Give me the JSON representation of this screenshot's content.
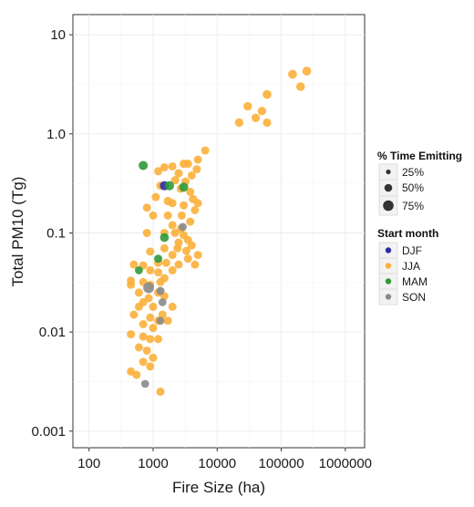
{
  "chart_data": {
    "type": "scatter",
    "xlabel": "Fire Size (ha)",
    "ylabel": "Total PM10 (Tg)",
    "x_scale": "log",
    "y_scale": "log",
    "xlim": [
      56,
      2000000
    ],
    "ylim": [
      0.00068,
      16
    ],
    "x_ticks": [
      {
        "value": 100,
        "label": "100"
      },
      {
        "value": 1000,
        "label": "1000"
      },
      {
        "value": 10000,
        "label": "10000"
      },
      {
        "value": 100000,
        "label": "100000"
      },
      {
        "value": 1000000,
        "label": "1000000"
      }
    ],
    "y_ticks": [
      {
        "value": 0.001,
        "label": "0.001"
      },
      {
        "value": 0.01,
        "label": "0.01"
      },
      {
        "value": 0.1,
        "label": "0.1"
      },
      {
        "value": 1,
        "label": "1.0"
      },
      {
        "value": 10,
        "label": "10"
      }
    ],
    "grid": true,
    "legend_position": "right",
    "size_legend": {
      "title": "% Time Emitting",
      "items": [
        {
          "label": "25%",
          "value": 25
        },
        {
          "label": "50%",
          "value": 50
        },
        {
          "label": "75%",
          "value": 75
        }
      ]
    },
    "color_legend": {
      "title": "Start month",
      "items": [
        {
          "label": "DJF",
          "color": "#2b2fa3"
        },
        {
          "label": "JJA",
          "color": "#fbb03b"
        },
        {
          "label": "MAM",
          "color": "#2f9a3a"
        },
        {
          "label": "SON",
          "color": "#8a8a8a"
        }
      ]
    },
    "series": [
      {
        "name": "JJA",
        "color": "#fbb03b",
        "points": [
          {
            "x": 250000,
            "y": 4.3,
            "s": 40
          },
          {
            "x": 150000,
            "y": 4.0,
            "s": 40
          },
          {
            "x": 200000,
            "y": 3.0,
            "s": 38
          },
          {
            "x": 60000,
            "y": 2.5,
            "s": 40
          },
          {
            "x": 30000,
            "y": 1.9,
            "s": 36
          },
          {
            "x": 50000,
            "y": 1.7,
            "s": 34
          },
          {
            "x": 40000,
            "y": 1.45,
            "s": 34
          },
          {
            "x": 22000,
            "y": 1.3,
            "s": 34
          },
          {
            "x": 60000,
            "y": 1.3,
            "s": 32
          },
          {
            "x": 6500,
            "y": 0.68,
            "s": 30
          },
          {
            "x": 5000,
            "y": 0.55,
            "s": 30
          },
          {
            "x": 3500,
            "y": 0.5,
            "s": 30
          },
          {
            "x": 4800,
            "y": 0.44,
            "s": 30
          },
          {
            "x": 4000,
            "y": 0.38,
            "s": 30
          },
          {
            "x": 3000,
            "y": 0.5,
            "s": 32
          },
          {
            "x": 2000,
            "y": 0.47,
            "s": 30
          },
          {
            "x": 1500,
            "y": 0.46,
            "s": 30
          },
          {
            "x": 2500,
            "y": 0.4,
            "s": 32
          },
          {
            "x": 1200,
            "y": 0.42,
            "s": 30
          },
          {
            "x": 3200,
            "y": 0.33,
            "s": 30
          },
          {
            "x": 2200,
            "y": 0.34,
            "s": 32
          },
          {
            "x": 2700,
            "y": 0.28,
            "s": 30
          },
          {
            "x": 3800,
            "y": 0.26,
            "s": 30
          },
          {
            "x": 4200,
            "y": 0.22,
            "s": 32
          },
          {
            "x": 1300,
            "y": 0.3,
            "s": 30
          },
          {
            "x": 1100,
            "y": 0.23,
            "s": 30
          },
          {
            "x": 1700,
            "y": 0.21,
            "s": 32
          },
          {
            "x": 2000,
            "y": 0.2,
            "s": 30
          },
          {
            "x": 3000,
            "y": 0.19,
            "s": 30
          },
          {
            "x": 5000,
            "y": 0.2,
            "s": 30
          },
          {
            "x": 4500,
            "y": 0.17,
            "s": 30
          },
          {
            "x": 800,
            "y": 0.18,
            "s": 30
          },
          {
            "x": 1000,
            "y": 0.15,
            "s": 30
          },
          {
            "x": 1700,
            "y": 0.15,
            "s": 30
          },
          {
            "x": 2800,
            "y": 0.15,
            "s": 30
          },
          {
            "x": 3800,
            "y": 0.13,
            "s": 30
          },
          {
            "x": 2000,
            "y": 0.12,
            "s": 30
          },
          {
            "x": 2700,
            "y": 0.11,
            "s": 30
          },
          {
            "x": 800,
            "y": 0.1,
            "s": 30
          },
          {
            "x": 1500,
            "y": 0.1,
            "s": 30
          },
          {
            "x": 2200,
            "y": 0.1,
            "s": 30
          },
          {
            "x": 3000,
            "y": 0.095,
            "s": 30
          },
          {
            "x": 3500,
            "y": 0.085,
            "s": 30
          },
          {
            "x": 2500,
            "y": 0.08,
            "s": 30
          },
          {
            "x": 4000,
            "y": 0.075,
            "s": 30
          },
          {
            "x": 3300,
            "y": 0.066,
            "s": 30
          },
          {
            "x": 5000,
            "y": 0.06,
            "s": 30
          },
          {
            "x": 2400,
            "y": 0.07,
            "s": 30
          },
          {
            "x": 2000,
            "y": 0.06,
            "s": 30
          },
          {
            "x": 1500,
            "y": 0.07,
            "s": 30
          },
          {
            "x": 900,
            "y": 0.065,
            "s": 30
          },
          {
            "x": 3500,
            "y": 0.055,
            "s": 30
          },
          {
            "x": 2500,
            "y": 0.048,
            "s": 30
          },
          {
            "x": 4500,
            "y": 0.048,
            "s": 30
          },
          {
            "x": 1200,
            "y": 0.05,
            "s": 30
          },
          {
            "x": 1600,
            "y": 0.05,
            "s": 30
          },
          {
            "x": 2000,
            "y": 0.042,
            "s": 30
          },
          {
            "x": 1200,
            "y": 0.04,
            "s": 30
          },
          {
            "x": 900,
            "y": 0.042,
            "s": 30
          },
          {
            "x": 700,
            "y": 0.047,
            "s": 30
          },
          {
            "x": 500,
            "y": 0.048,
            "s": 30
          },
          {
            "x": 1500,
            "y": 0.035,
            "s": 30
          },
          {
            "x": 1300,
            "y": 0.032,
            "s": 30
          },
          {
            "x": 900,
            "y": 0.03,
            "s": 30
          },
          {
            "x": 700,
            "y": 0.032,
            "s": 30
          },
          {
            "x": 450,
            "y": 0.033,
            "s": 30
          },
          {
            "x": 450,
            "y": 0.03,
            "s": 30
          },
          {
            "x": 600,
            "y": 0.025,
            "s": 30
          },
          {
            "x": 1200,
            "y": 0.025,
            "s": 30
          },
          {
            "x": 1500,
            "y": 0.023,
            "s": 30
          },
          {
            "x": 850,
            "y": 0.022,
            "s": 30
          },
          {
            "x": 700,
            "y": 0.02,
            "s": 30
          },
          {
            "x": 600,
            "y": 0.018,
            "s": 30
          },
          {
            "x": 1000,
            "y": 0.018,
            "s": 30
          },
          {
            "x": 2000,
            "y": 0.018,
            "s": 30
          },
          {
            "x": 1400,
            "y": 0.015,
            "s": 30
          },
          {
            "x": 500,
            "y": 0.015,
            "s": 30
          },
          {
            "x": 900,
            "y": 0.014,
            "s": 30
          },
          {
            "x": 1200,
            "y": 0.013,
            "s": 30
          },
          {
            "x": 1700,
            "y": 0.013,
            "s": 30
          },
          {
            "x": 700,
            "y": 0.012,
            "s": 30
          },
          {
            "x": 1000,
            "y": 0.011,
            "s": 30
          },
          {
            "x": 450,
            "y": 0.0095,
            "s": 30
          },
          {
            "x": 700,
            "y": 0.009,
            "s": 30
          },
          {
            "x": 900,
            "y": 0.0085,
            "s": 30
          },
          {
            "x": 1200,
            "y": 0.0085,
            "s": 30
          },
          {
            "x": 600,
            "y": 0.007,
            "s": 30
          },
          {
            "x": 800,
            "y": 0.0065,
            "s": 30
          },
          {
            "x": 1000,
            "y": 0.0055,
            "s": 30
          },
          {
            "x": 700,
            "y": 0.005,
            "s": 30
          },
          {
            "x": 900,
            "y": 0.0045,
            "s": 30
          },
          {
            "x": 450,
            "y": 0.004,
            "s": 30
          },
          {
            "x": 550,
            "y": 0.0037,
            "s": 30
          },
          {
            "x": 1300,
            "y": 0.0025,
            "s": 30
          }
        ]
      },
      {
        "name": "DJF",
        "color": "#2b2fa3",
        "points": [
          {
            "x": 1500,
            "y": 0.3,
            "s": 45
          }
        ]
      },
      {
        "name": "MAM",
        "color": "#2f9a3a",
        "points": [
          {
            "x": 700,
            "y": 0.48,
            "s": 45
          },
          {
            "x": 1800,
            "y": 0.3,
            "s": 45
          },
          {
            "x": 3000,
            "y": 0.29,
            "s": 45
          },
          {
            "x": 1500,
            "y": 0.09,
            "s": 40
          },
          {
            "x": 1200,
            "y": 0.055,
            "s": 30
          },
          {
            "x": 600,
            "y": 0.042,
            "s": 28
          }
        ]
      },
      {
        "name": "SON",
        "color": "#8a8a8a",
        "points": [
          {
            "x": 850,
            "y": 0.028,
            "s": 80
          },
          {
            "x": 1300,
            "y": 0.026,
            "s": 30
          },
          {
            "x": 2900,
            "y": 0.115,
            "s": 28
          },
          {
            "x": 1300,
            "y": 0.013,
            "s": 26
          },
          {
            "x": 750,
            "y": 0.003,
            "s": 26
          },
          {
            "x": 1400,
            "y": 0.02,
            "s": 26
          }
        ]
      }
    ]
  }
}
